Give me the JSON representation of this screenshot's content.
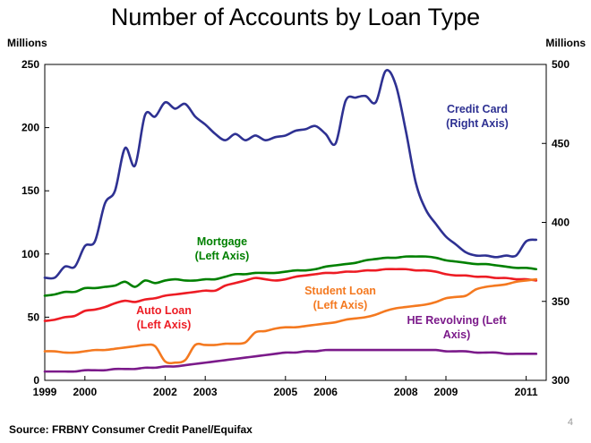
{
  "title": "Number of Accounts by Loan Type",
  "left_unit": "Millions",
  "right_unit": "Millions",
  "source": "Source: FRBNY Consumer Credit Panel/Equifax",
  "page_number": "4",
  "chart_data": {
    "type": "line",
    "title": "Number of Accounts by Loan Type",
    "xlim": [
      1999,
      2011.5
    ],
    "x_ticks": [
      1999,
      2000,
      2002,
      2003,
      2005,
      2006,
      2008,
      2009,
      2011
    ],
    "left_axis": {
      "unit": "Millions",
      "ylim": [
        0,
        250
      ],
      "ticks": [
        0,
        50,
        100,
        150,
        200,
        250
      ]
    },
    "right_axis": {
      "unit": "Millions",
      "ylim": [
        300,
        500
      ],
      "ticks": [
        300,
        350,
        400,
        450,
        500
      ]
    },
    "series": [
      {
        "name": "Credit Card",
        "label": [
          "Credit Card",
          "(Right Axis)"
        ],
        "axis": "right",
        "color": "#2e3192",
        "x": [
          1999.0,
          1999.25,
          1999.5,
          1999.75,
          2000.0,
          2000.25,
          2000.5,
          2000.75,
          2001.0,
          2001.25,
          2001.5,
          2001.75,
          2002.0,
          2002.25,
          2002.5,
          2002.75,
          2003.0,
          2003.25,
          2003.5,
          2003.75,
          2004.0,
          2004.25,
          2004.5,
          2004.75,
          2005.0,
          2005.25,
          2005.5,
          2005.75,
          2006.0,
          2006.25,
          2006.5,
          2006.75,
          2007.0,
          2007.25,
          2007.5,
          2007.75,
          2008.0,
          2008.25,
          2008.5,
          2008.75,
          2009.0,
          2009.25,
          2009.5,
          2009.75,
          2010.0,
          2010.25,
          2010.5,
          2010.75,
          2011.0,
          2011.25
        ],
        "values": [
          365,
          365,
          372,
          372,
          385,
          388,
          412,
          420,
          447,
          436,
          468,
          467,
          476,
          472,
          475,
          467,
          462,
          456,
          452,
          456,
          452,
          455,
          452,
          454,
          455,
          458,
          459,
          461,
          456,
          450,
          477,
          479,
          480,
          476,
          496,
          487,
          458,
          425,
          408,
          399,
          391,
          386,
          381,
          379,
          379,
          378,
          379,
          379,
          388,
          389
        ]
      },
      {
        "name": "Mortgage",
        "label": [
          "Mortgage",
          "(Left Axis)"
        ],
        "axis": "left",
        "color": "#008000",
        "x": [
          1999.0,
          1999.25,
          1999.5,
          1999.75,
          2000.0,
          2000.25,
          2000.5,
          2000.75,
          2001.0,
          2001.25,
          2001.5,
          2001.75,
          2002.0,
          2002.25,
          2002.5,
          2002.75,
          2003.0,
          2003.25,
          2003.5,
          2003.75,
          2004.0,
          2004.25,
          2004.5,
          2004.75,
          2005.0,
          2005.25,
          2005.5,
          2005.75,
          2006.0,
          2006.25,
          2006.5,
          2006.75,
          2007.0,
          2007.25,
          2007.5,
          2007.75,
          2008.0,
          2008.25,
          2008.5,
          2008.75,
          2009.0,
          2009.25,
          2009.5,
          2009.75,
          2010.0,
          2010.25,
          2010.5,
          2010.75,
          2011.0,
          2011.25
        ],
        "values": [
          67,
          68,
          70,
          70,
          73,
          73,
          74,
          75,
          78,
          74,
          79,
          77,
          79,
          80,
          79,
          79,
          80,
          80,
          82,
          84,
          84,
          85,
          85,
          85,
          86,
          87,
          87,
          88,
          90,
          91,
          92,
          93,
          95,
          96,
          97,
          97,
          98,
          98,
          98,
          97,
          95,
          94,
          93,
          92,
          92,
          91,
          90,
          89,
          89,
          88
        ]
      },
      {
        "name": "Auto Loan",
        "label": [
          "Auto Loan",
          "(Left Axis)"
        ],
        "axis": "left",
        "color": "#ed1c24",
        "x": [
          1999.0,
          1999.25,
          1999.5,
          1999.75,
          2000.0,
          2000.25,
          2000.5,
          2000.75,
          2001.0,
          2001.25,
          2001.5,
          2001.75,
          2002.0,
          2002.25,
          2002.5,
          2002.75,
          2003.0,
          2003.25,
          2003.5,
          2003.75,
          2004.0,
          2004.25,
          2004.5,
          2004.75,
          2005.0,
          2005.25,
          2005.5,
          2005.75,
          2006.0,
          2006.25,
          2006.5,
          2006.75,
          2007.0,
          2007.25,
          2007.5,
          2007.75,
          2008.0,
          2008.25,
          2008.5,
          2008.75,
          2009.0,
          2009.25,
          2009.5,
          2009.75,
          2010.0,
          2010.25,
          2010.5,
          2010.75,
          2011.0,
          2011.25
        ],
        "values": [
          47,
          48,
          50,
          51,
          55,
          56,
          58,
          61,
          63,
          62,
          64,
          65,
          67,
          68,
          69,
          70,
          71,
          71,
          75,
          77,
          79,
          81,
          80,
          79,
          80,
          82,
          83,
          84,
          85,
          85,
          86,
          86,
          87,
          87,
          88,
          88,
          88,
          87,
          87,
          86,
          84,
          83,
          83,
          82,
          82,
          81,
          81,
          80,
          80,
          79
        ]
      },
      {
        "name": "Student Loan",
        "label": [
          "Student Loan",
          "(Left Axis)"
        ],
        "axis": "left",
        "color": "#f47920",
        "x": [
          1999.0,
          1999.25,
          1999.5,
          1999.75,
          2000.0,
          2000.25,
          2000.5,
          2000.75,
          2001.0,
          2001.25,
          2001.5,
          2001.75,
          2002.0,
          2002.25,
          2002.5,
          2002.75,
          2003.0,
          2003.25,
          2003.5,
          2003.75,
          2004.0,
          2004.25,
          2004.5,
          2004.75,
          2005.0,
          2005.25,
          2005.5,
          2005.75,
          2006.0,
          2006.25,
          2006.5,
          2006.75,
          2007.0,
          2007.25,
          2007.5,
          2007.75,
          2008.0,
          2008.25,
          2008.5,
          2008.75,
          2009.0,
          2009.25,
          2009.5,
          2009.75,
          2010.0,
          2010.25,
          2010.5,
          2010.75,
          2011.0,
          2011.25
        ],
        "values": [
          23,
          23,
          22,
          22,
          23,
          24,
          24,
          25,
          26,
          27,
          28,
          27,
          15,
          14,
          16,
          28,
          28,
          28,
          29,
          29,
          30,
          38,
          39,
          41,
          42,
          42,
          43,
          44,
          45,
          46,
          48,
          49,
          50,
          52,
          55,
          57,
          58,
          59,
          60,
          62,
          65,
          66,
          67,
          72,
          74,
          75,
          76,
          78,
          79,
          80
        ]
      },
      {
        "name": "HE Revolving",
        "label": [
          "HE Revolving (Left",
          "Axis)"
        ],
        "axis": "left",
        "color": "#7b1a8a",
        "x": [
          1999.0,
          1999.25,
          1999.5,
          1999.75,
          2000.0,
          2000.25,
          2000.5,
          2000.75,
          2001.0,
          2001.25,
          2001.5,
          2001.75,
          2002.0,
          2002.25,
          2002.5,
          2002.75,
          2003.0,
          2003.25,
          2003.5,
          2003.75,
          2004.0,
          2004.25,
          2004.5,
          2004.75,
          2005.0,
          2005.25,
          2005.5,
          2005.75,
          2006.0,
          2006.25,
          2006.5,
          2006.75,
          2007.0,
          2007.25,
          2007.5,
          2007.75,
          2008.0,
          2008.25,
          2008.5,
          2008.75,
          2009.0,
          2009.25,
          2009.5,
          2009.75,
          2010.0,
          2010.25,
          2010.5,
          2010.75,
          2011.0,
          2011.25
        ],
        "values": [
          7,
          7,
          7,
          7,
          8,
          8,
          8,
          9,
          9,
          9,
          10,
          10,
          11,
          11,
          12,
          13,
          14,
          15,
          16,
          17,
          18,
          19,
          20,
          21,
          22,
          22,
          23,
          23,
          24,
          24,
          24,
          24,
          24,
          24,
          24,
          24,
          24,
          24,
          24,
          24,
          23,
          23,
          23,
          22,
          22,
          22,
          21,
          21,
          21,
          21
        ]
      }
    ]
  }
}
